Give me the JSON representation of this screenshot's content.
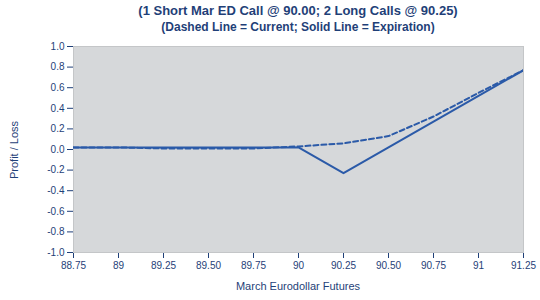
{
  "chart_data": {
    "type": "line",
    "title": "(1 Short Mar ED Call @ 90.00; 2 Long Calls @ 90.25)",
    "subtitle": "(Dashed Line = Current; Solid Line = Expiration)",
    "x_label": "March Eurodollar Futures",
    "y_label": "Profit / Loss",
    "x": [
      88.75,
      89,
      89.25,
      89.5,
      89.75,
      90,
      90.25,
      90.5,
      90.75,
      91,
      91.25
    ],
    "series": [
      {
        "name": "Current",
        "color": "#2b5aa8",
        "line_style": "dashed",
        "values": [
          0.02,
          0.02,
          0.01,
          0.01,
          0.01,
          0.03,
          0.06,
          0.13,
          0.32,
          0.55,
          0.77
        ]
      },
      {
        "name": "Expiration",
        "color": "#2b5aa8",
        "line_style": "solid",
        "values": [
          0.02,
          0.02,
          0.02,
          0.02,
          0.02,
          0.02,
          -0.23,
          0.02,
          0.27,
          0.52,
          0.77
        ]
      }
    ],
    "xlim": [
      88.75,
      91.25
    ],
    "xticks": [
      88.75,
      89,
      89.25,
      {
        "value": 89.5,
        "label": "89.50"
      },
      89.75,
      90,
      90.25,
      {
        "value": 90.5,
        "label": "90.50"
      },
      90.75,
      91,
      91.25
    ],
    "ylim": [
      -1,
      1
    ],
    "yticks": [
      {
        "value": 1,
        "label": "1.0"
      },
      {
        "value": 0.8,
        "label": "0.8"
      },
      {
        "value": 0.6,
        "label": "0.6"
      },
      {
        "value": 0.4,
        "label": "0.4"
      },
      {
        "value": 0.2,
        "label": "0.2"
      },
      {
        "value": 0,
        "label": "0.0"
      },
      {
        "value": -0.2,
        "label": "-0.2"
      },
      {
        "value": -0.4,
        "label": "-0.4"
      },
      {
        "value": -0.6,
        "label": "-0.6"
      },
      {
        "value": -0.8,
        "label": "-0.8"
      },
      {
        "value": -1,
        "label": "-1.0"
      }
    ],
    "grid": false
  }
}
